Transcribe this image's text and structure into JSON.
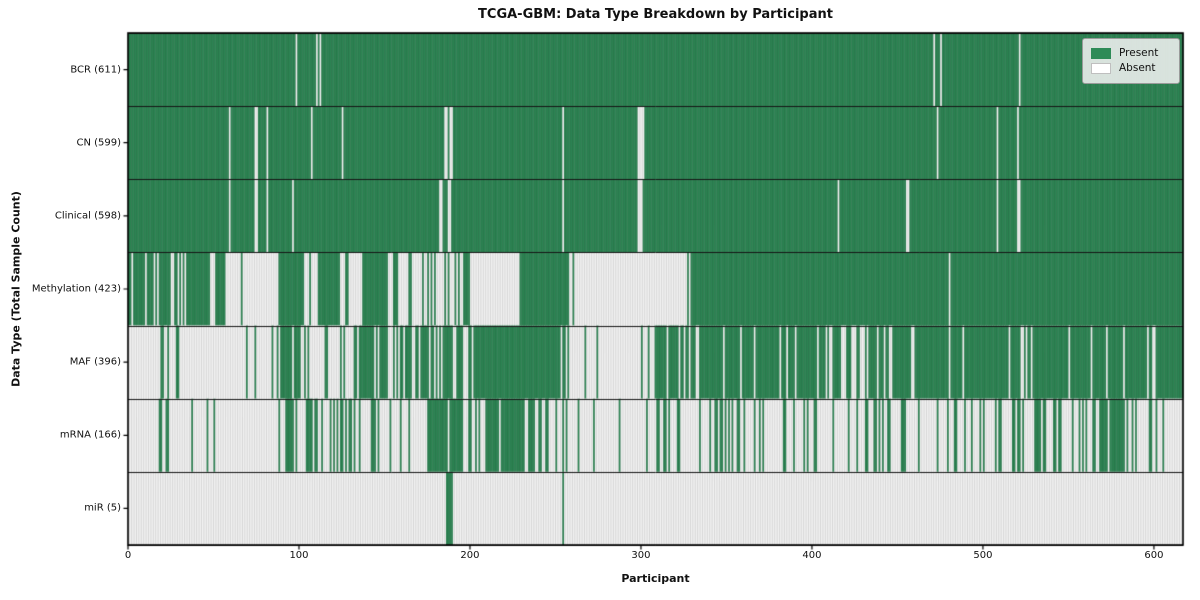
{
  "title": "TCGA-GBM: Data Type Breakdown by Participant",
  "xlabel": "Participant",
  "ylabel": "Data Type (Total Sample Count)",
  "legend": {
    "present_label": "Present",
    "absent_label": "Absent"
  },
  "colors": {
    "present": "#2e8b57",
    "absent": "#ffffff",
    "bar_edge": "rgba(25,25,25,0.34)",
    "row_divider": "#151515",
    "plot_border": "#000000",
    "text": "#111111",
    "legend_bg": "rgba(240,240,240,0.88)"
  },
  "chart_data": {
    "type": "heatmap",
    "title": "TCGA-GBM: Data Type Breakdown by Participant",
    "xlabel": "Participant",
    "ylabel": "Data Type (Total Sample Count)",
    "legend": [
      "Present",
      "Absent"
    ],
    "legend_position": "upper right",
    "n_participants": 617,
    "xlim": [
      0,
      617
    ],
    "x_ticks": [
      0,
      100,
      200,
      300,
      400,
      500,
      600
    ],
    "rows": [
      {
        "name": "BCR",
        "label": "BCR (611)",
        "total": 611,
        "absent_at": [
          98,
          110,
          112,
          471,
          475,
          521
        ]
      },
      {
        "name": "CN",
        "label": "CN (599)",
        "total": 599,
        "absent_at": [
          59,
          74,
          75,
          81,
          107,
          125,
          185,
          186,
          188,
          189,
          254,
          298,
          299,
          300,
          301,
          473,
          508,
          520
        ]
      },
      {
        "name": "Clinical",
        "label": "Clinical (598)",
        "total": 598,
        "absent_at": [
          59,
          74,
          75,
          81,
          96,
          182,
          183,
          187,
          188,
          254,
          298,
          299,
          300,
          415,
          455,
          456,
          508,
          520,
          521
        ]
      },
      {
        "name": "Methylation",
        "label": "Methylation (423)",
        "total": 423,
        "present_segments": [
          {
            "from": 0,
            "to": 57,
            "p": 0.66
          },
          {
            "from": 57,
            "to": 88,
            "p": 0.06
          },
          {
            "from": 88,
            "to": 103,
            "p": 1
          },
          {
            "from": 103,
            "to": 112,
            "p": 0.4
          },
          {
            "from": 112,
            "to": 124,
            "p": 1
          },
          {
            "from": 124,
            "to": 137,
            "p": 0.3
          },
          {
            "from": 137,
            "to": 152,
            "p": 1
          },
          {
            "from": 152,
            "to": 196,
            "p": 0.25
          },
          {
            "from": 196,
            "to": 200,
            "p": 1
          },
          {
            "from": 200,
            "to": 229,
            "p": 0.04
          },
          {
            "from": 229,
            "to": 258,
            "p": 1
          },
          {
            "from": 258,
            "to": 330,
            "p": 0.03
          },
          {
            "from": 330,
            "to": 617,
            "p": 0.995
          }
        ]
      },
      {
        "name": "MAF",
        "label": "MAF (396)",
        "total": 396,
        "present_segments": [
          {
            "from": 0,
            "to": 18,
            "p": 0
          },
          {
            "from": 18,
            "to": 32,
            "p": 0.35
          },
          {
            "from": 32,
            "to": 89,
            "p": 0.05
          },
          {
            "from": 89,
            "to": 101,
            "p": 0.95
          },
          {
            "from": 101,
            "to": 136,
            "p": 0.45
          },
          {
            "from": 136,
            "to": 152,
            "p": 0.8
          },
          {
            "from": 152,
            "to": 162,
            "p": 0.2
          },
          {
            "from": 162,
            "to": 203,
            "p": 0.55
          },
          {
            "from": 203,
            "to": 258,
            "p": 0.95
          },
          {
            "from": 258,
            "to": 308,
            "p": 0.05
          },
          {
            "from": 308,
            "to": 418,
            "p": 0.85
          },
          {
            "from": 418,
            "to": 434,
            "p": 0.35
          },
          {
            "from": 434,
            "to": 560,
            "p": 0.9
          },
          {
            "from": 560,
            "to": 617,
            "p": 0.95
          }
        ]
      },
      {
        "name": "mRNA",
        "label": "mRNA (166)",
        "total": 166,
        "present_segments": [
          {
            "from": 0,
            "to": 18,
            "p": 0
          },
          {
            "from": 18,
            "to": 26,
            "p": 0.5
          },
          {
            "from": 26,
            "to": 88,
            "p": 0.03
          },
          {
            "from": 88,
            "to": 105,
            "p": 0.55
          },
          {
            "from": 105,
            "to": 135,
            "p": 0.35
          },
          {
            "from": 135,
            "to": 175,
            "p": 0.15
          },
          {
            "from": 175,
            "to": 196,
            "p": 0.8
          },
          {
            "from": 196,
            "to": 209,
            "p": 0.3
          },
          {
            "from": 209,
            "to": 238,
            "p": 0.85
          },
          {
            "from": 238,
            "to": 258,
            "p": 0.25
          },
          {
            "from": 258,
            "to": 308,
            "p": 0.06
          },
          {
            "from": 308,
            "to": 360,
            "p": 0.2
          },
          {
            "from": 360,
            "to": 460,
            "p": 0.25
          },
          {
            "from": 460,
            "to": 560,
            "p": 0.3
          },
          {
            "from": 560,
            "to": 590,
            "p": 0.5
          },
          {
            "from": 590,
            "to": 617,
            "p": 0.1
          }
        ]
      },
      {
        "name": "miR",
        "label": "miR (5)",
        "total": 5,
        "present_at": [
          186,
          187,
          188,
          189,
          254
        ]
      }
    ]
  }
}
